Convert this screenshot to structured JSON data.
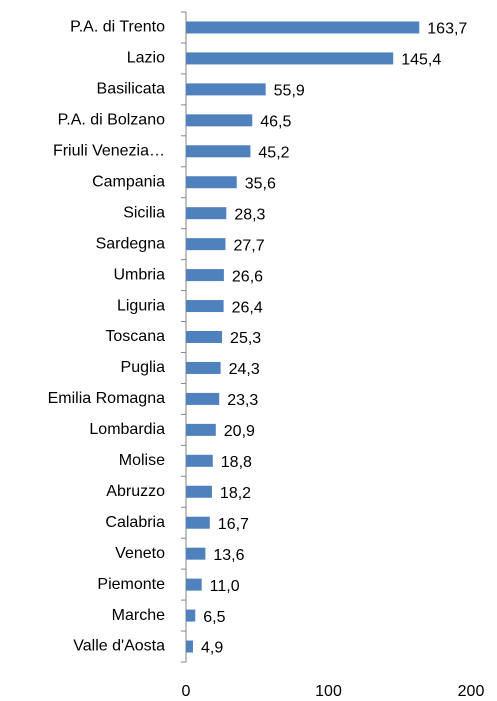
{
  "chart_data": {
    "type": "bar",
    "orientation": "horizontal",
    "categories": [
      "P.A. di Trento",
      "Lazio",
      "Basilicata",
      "P.A. di Bolzano",
      "Friuli Venezia…",
      "Campania",
      "Sicilia",
      "Sardegna",
      "Umbria",
      "Liguria",
      "Toscana",
      "Puglia",
      "Emilia Romagna",
      "Lombardia",
      "Molise",
      "Abruzzo",
      "Calabria",
      "Veneto",
      "Piemonte",
      "Marche",
      "Valle d'Aosta"
    ],
    "values": [
      163.7,
      145.4,
      55.9,
      46.5,
      45.2,
      35.6,
      28.3,
      27.7,
      26.6,
      26.4,
      25.3,
      24.3,
      23.3,
      20.9,
      18.8,
      18.2,
      16.7,
      13.6,
      11.0,
      6.5,
      4.9
    ],
    "value_labels": [
      "163,7",
      "145,4",
      "55,9",
      "46,5",
      "45,2",
      "35,6",
      "28,3",
      "27,7",
      "26,6",
      "26,4",
      "25,3",
      "24,3",
      "23,3",
      "20,9",
      "18,8",
      "18,2",
      "16,7",
      "13,6",
      "11,0",
      "6,5",
      "4,9"
    ],
    "color": "#4f81bd",
    "xlim": [
      0,
      200
    ],
    "xticks": [
      0,
      100,
      200
    ]
  }
}
